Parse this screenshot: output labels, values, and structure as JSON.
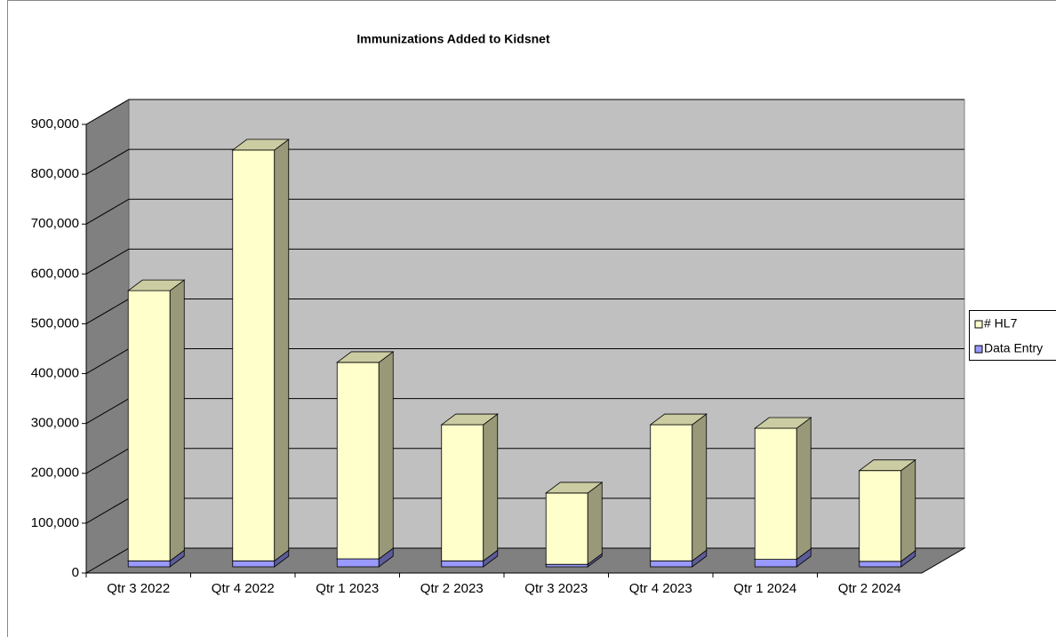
{
  "chart_data": {
    "type": "bar3d_stacked",
    "title": "Immunizations Added to Kidsnet",
    "categories": [
      "Qtr 3 2022",
      "Qtr 4 2022",
      "Qtr 1 2023",
      "Qtr 2 2023",
      "Qtr 3 2023",
      "Qtr 4 2023",
      "Qtr 1 2024",
      "Qtr 2 2024"
    ],
    "series": [
      {
        "name": "Data Entry",
        "color": "#9999ff",
        "values": [
          12000,
          12000,
          16000,
          12000,
          5000,
          12000,
          15000,
          11000
        ]
      },
      {
        "name": "# HL7",
        "color": "#ffffcc",
        "values": [
          542000,
          824000,
          394000,
          273000,
          143000,
          273000,
          263000,
          182000
        ]
      }
    ],
    "ylim": [
      0,
      900000
    ],
    "yticks": [
      0,
      {
        "value": 100000,
        "label": "100,000"
      },
      {
        "value": 200000,
        "label": "200,000"
      },
      {
        "value": 300000,
        "label": "300,000"
      },
      {
        "value": 400000,
        "label": "400,000"
      },
      {
        "value": 500000,
        "label": "500,000"
      },
      {
        "value": 600000,
        "label": "600,000"
      },
      {
        "value": 700000,
        "label": "700,000"
      },
      {
        "value": 800000,
        "label": "800,000"
      },
      {
        "value": 900000,
        "label": "900,000"
      }
    ],
    "grid": true,
    "legend": "right"
  }
}
